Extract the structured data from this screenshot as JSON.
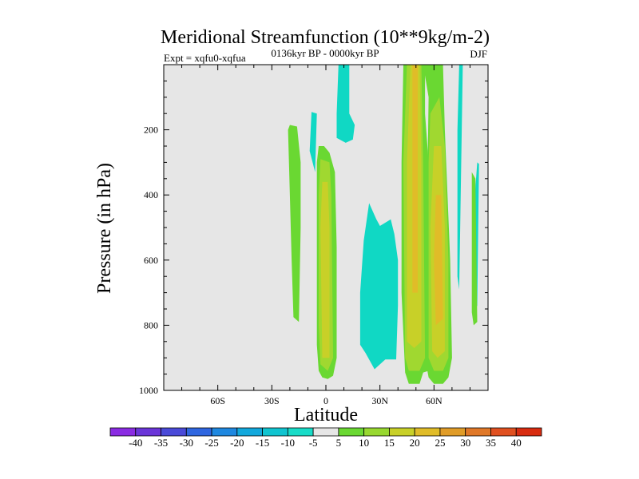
{
  "chart_data": {
    "type": "heatmap",
    "title": "Meridional Streamfunction (10**9kg/m-2)",
    "subtitle": "0136kyr BP - 0000kyr BP",
    "left_label": "Expt = xqfu0-xqfua",
    "right_label": "DJF",
    "xlabel": "Latitude",
    "ylabel": "Pressure (in hPa)",
    "xlim": [
      -90,
      90
    ],
    "ylim": [
      1000,
      0
    ],
    "x_ticks": [
      {
        "value": -60,
        "label": "60S"
      },
      {
        "value": -30,
        "label": "30S"
      },
      {
        "value": 0,
        "label": "0"
      },
      {
        "value": 30,
        "label": "30N"
      },
      {
        "value": 60,
        "label": "60N"
      }
    ],
    "y_ticks": [
      {
        "value": 200,
        "label": "200"
      },
      {
        "value": 400,
        "label": "400"
      },
      {
        "value": 600,
        "label": "600"
      },
      {
        "value": 800,
        "label": "800"
      },
      {
        "value": 1000,
        "label": "1000"
      }
    ],
    "background_color": "#e6e6e6",
    "colorbar": {
      "labels": [
        "-40",
        "-35",
        "-30",
        "-25",
        "-20",
        "-15",
        "-10",
        "-5",
        "5",
        "10",
        "15",
        "20",
        "25",
        "30",
        "35",
        "40"
      ],
      "colors": [
        "#8a2be2",
        "#6a35d8",
        "#4a4ad8",
        "#2f66e0",
        "#1f88e0",
        "#12a8dc",
        "#10c4d0",
        "#18dcc8",
        "#e6e6e6",
        "#6ad832",
        "#98d830",
        "#c8d028",
        "#e0bc28",
        "#e09c28",
        "#e07828",
        "#e05020",
        "#d82c10"
      ]
    },
    "regions": [
      {
        "level": "-10",
        "color": "#10d8c4",
        "points": [
          [
            7,
            0
          ],
          [
            13,
            0
          ],
          [
            13,
            150
          ],
          [
            16,
            185
          ],
          [
            15,
            230
          ],
          [
            11,
            240
          ],
          [
            6,
            225
          ],
          [
            6,
            150
          ]
        ]
      },
      {
        "level": "-10",
        "color": "#10d8c4",
        "points": [
          [
            -8,
            145
          ],
          [
            -5,
            150
          ],
          [
            -6,
            330
          ],
          [
            -9,
            265
          ]
        ]
      },
      {
        "level": "-10",
        "color": "#10d8c4",
        "points": [
          [
            24,
            425
          ],
          [
            28,
            475
          ],
          [
            30,
            495
          ],
          [
            36,
            475
          ],
          [
            38,
            520
          ],
          [
            40,
            600
          ],
          [
            40,
            740
          ],
          [
            39,
            905
          ],
          [
            33,
            905
          ],
          [
            27,
            935
          ],
          [
            22,
            885
          ],
          [
            19,
            860
          ],
          [
            19,
            700
          ],
          [
            21,
            540
          ]
        ]
      },
      {
        "level": "-10",
        "color": "#10d8c4",
        "points": [
          [
            74,
            0
          ],
          [
            76,
            0
          ],
          [
            74,
            690
          ],
          [
            73,
            650
          ],
          [
            73,
            200
          ]
        ]
      },
      {
        "level": "-10",
        "color": "#10d8c4",
        "points": [
          [
            84,
            300
          ],
          [
            85,
            305
          ],
          [
            84,
            740
          ],
          [
            82,
            760
          ],
          [
            82,
            450
          ]
        ]
      },
      {
        "level": "5",
        "color": "#6ad832",
        "points": [
          [
            -20,
            185
          ],
          [
            -16,
            190
          ],
          [
            -14,
            300
          ],
          [
            -14,
            500
          ],
          [
            -15,
            790
          ],
          [
            -18,
            775
          ],
          [
            -19,
            600
          ],
          [
            -20,
            400
          ],
          [
            -21,
            200
          ]
        ]
      },
      {
        "level": "5",
        "color": "#6ad832",
        "points": [
          [
            -4,
            250
          ],
          [
            -1,
            250
          ],
          [
            2,
            270
          ],
          [
            5,
            330
          ],
          [
            6,
            560
          ],
          [
            6,
            900
          ],
          [
            4,
            955
          ],
          [
            1,
            965
          ],
          [
            -2,
            960
          ],
          [
            -4,
            940
          ],
          [
            -5,
            860
          ],
          [
            -5,
            600
          ],
          [
            -5,
            300
          ]
        ]
      },
      {
        "level": "5",
        "color": "#6ad832",
        "points": [
          [
            43,
            0
          ],
          [
            55,
            0
          ],
          [
            55,
            150
          ],
          [
            57,
            300
          ],
          [
            57,
            940
          ],
          [
            54,
            945
          ],
          [
            52,
            980
          ],
          [
            46,
            980
          ],
          [
            44,
            945
          ],
          [
            42,
            700
          ],
          [
            42,
            300
          ]
        ]
      },
      {
        "level": "5",
        "color": "#6ad832",
        "points": [
          [
            54,
            0
          ],
          [
            65,
            0
          ],
          [
            66,
            200
          ],
          [
            69,
            600
          ],
          [
            70,
            900
          ],
          [
            68,
            960
          ],
          [
            65,
            980
          ],
          [
            60,
            980
          ],
          [
            57,
            960
          ],
          [
            55,
            900
          ],
          [
            57,
            100
          ]
        ]
      },
      {
        "level": "5",
        "color": "#6ad832",
        "points": [
          [
            81,
            330
          ],
          [
            83,
            350
          ],
          [
            84,
            790
          ],
          [
            82,
            800
          ],
          [
            81,
            760
          ]
        ]
      },
      {
        "level": "10",
        "color": "#a0d830",
        "points": [
          [
            -3,
            290
          ],
          [
            2,
            300
          ],
          [
            3,
            400
          ],
          [
            4,
            900
          ],
          [
            1,
            940
          ],
          [
            -3,
            920
          ],
          [
            -4,
            800
          ],
          [
            -4,
            400
          ]
        ]
      },
      {
        "level": "10",
        "color": "#a0d830",
        "points": [
          [
            45,
            0
          ],
          [
            53,
            0
          ],
          [
            54,
            300
          ],
          [
            55,
            900
          ],
          [
            52,
            940
          ],
          [
            46,
            940
          ],
          [
            44,
            900
          ],
          [
            43,
            300
          ]
        ]
      },
      {
        "level": "10",
        "color": "#a0d830",
        "points": [
          [
            58,
            150
          ],
          [
            63,
            100
          ],
          [
            66,
            250
          ],
          [
            68,
            600
          ],
          [
            68,
            900
          ],
          [
            65,
            940
          ],
          [
            60,
            940
          ],
          [
            57,
            900
          ],
          [
            57,
            300
          ]
        ]
      },
      {
        "level": "15",
        "color": "#c8d028",
        "points": [
          [
            -2,
            360
          ],
          [
            1,
            360
          ],
          [
            2,
            500
          ],
          [
            2,
            900
          ],
          [
            -2,
            900
          ],
          [
            -3,
            500
          ]
        ]
      },
      {
        "level": "15",
        "color": "#c8d028",
        "points": [
          [
            47,
            0
          ],
          [
            52,
            0
          ],
          [
            53,
            300
          ],
          [
            53,
            850
          ],
          [
            49,
            870
          ],
          [
            45,
            850
          ],
          [
            45,
            300
          ]
        ]
      },
      {
        "level": "15",
        "color": "#c8d028",
        "points": [
          [
            60,
            250
          ],
          [
            64,
            250
          ],
          [
            66,
            500
          ],
          [
            66,
            880
          ],
          [
            62,
            900
          ],
          [
            59,
            880
          ],
          [
            58,
            500
          ]
        ]
      },
      {
        "level": "20",
        "color": "#e0bc28",
        "points": [
          [
            48,
            0
          ],
          [
            51,
            0
          ],
          [
            51,
            700
          ],
          [
            48,
            700
          ]
        ]
      },
      {
        "level": "20",
        "color": "#e0bc28",
        "points": [
          [
            61,
            400
          ],
          [
            64,
            400
          ],
          [
            65,
            780
          ],
          [
            61,
            800
          ],
          [
            60,
            600
          ]
        ]
      }
    ]
  }
}
